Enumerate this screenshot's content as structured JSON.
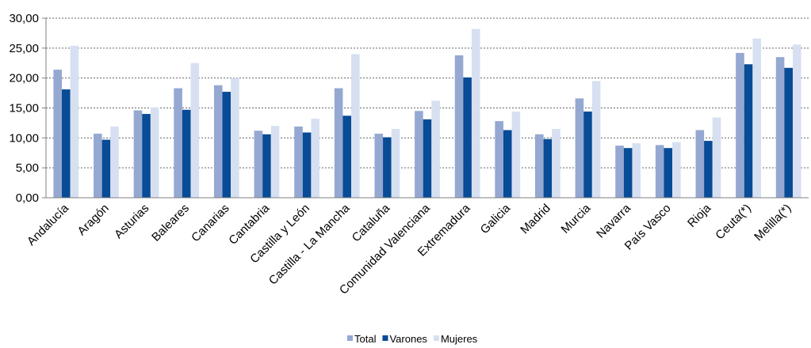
{
  "chart_data": {
    "type": "bar",
    "categories": [
      "Andalucía",
      "Aragón",
      "Asturias",
      "Baleares",
      "Canarias",
      "Cantabria",
      "Castilla y León",
      "Castilla - La Mancha",
      "Cataluña",
      "Comunidad Valenciana",
      "Extremadura",
      "Galicia",
      "Madrid",
      "Murcia",
      "Navarra",
      "País Vasco",
      "Rioja",
      "Ceuta(*)",
      "Melilla(*)"
    ],
    "series": [
      {
        "name": "Total",
        "color": "#95a8d2",
        "values": [
          21.4,
          10.7,
          14.6,
          18.3,
          18.8,
          11.2,
          11.9,
          18.3,
          10.7,
          14.5,
          23.8,
          12.8,
          10.6,
          16.6,
          8.7,
          8.8,
          11.3,
          24.2,
          23.5
        ]
      },
      {
        "name": "Varones",
        "color": "#084b96",
        "values": [
          18.1,
          9.7,
          14.0,
          14.7,
          17.7,
          10.6,
          10.9,
          13.7,
          10.1,
          13.1,
          20.1,
          11.3,
          9.8,
          14.4,
          8.3,
          8.3,
          9.5,
          22.3,
          21.7
        ]
      },
      {
        "name": "Mujeres",
        "color": "#d7e0f1",
        "values": [
          25.4,
          11.9,
          15.1,
          22.5,
          20.0,
          12.0,
          13.2,
          24.0,
          11.5,
          16.2,
          28.2,
          14.4,
          11.5,
          19.5,
          9.1,
          9.3,
          13.4,
          26.6,
          25.6
        ]
      }
    ],
    "y_ticks": [
      "0,00",
      "5,00",
      "10,00",
      "15,00",
      "20,00",
      "25,00",
      "30,00"
    ],
    "ylim": [
      0,
      30
    ],
    "grid": "horizontal-dotted",
    "legend_position": "bottom-center",
    "title": "",
    "xlabel": "",
    "ylabel": ""
  }
}
